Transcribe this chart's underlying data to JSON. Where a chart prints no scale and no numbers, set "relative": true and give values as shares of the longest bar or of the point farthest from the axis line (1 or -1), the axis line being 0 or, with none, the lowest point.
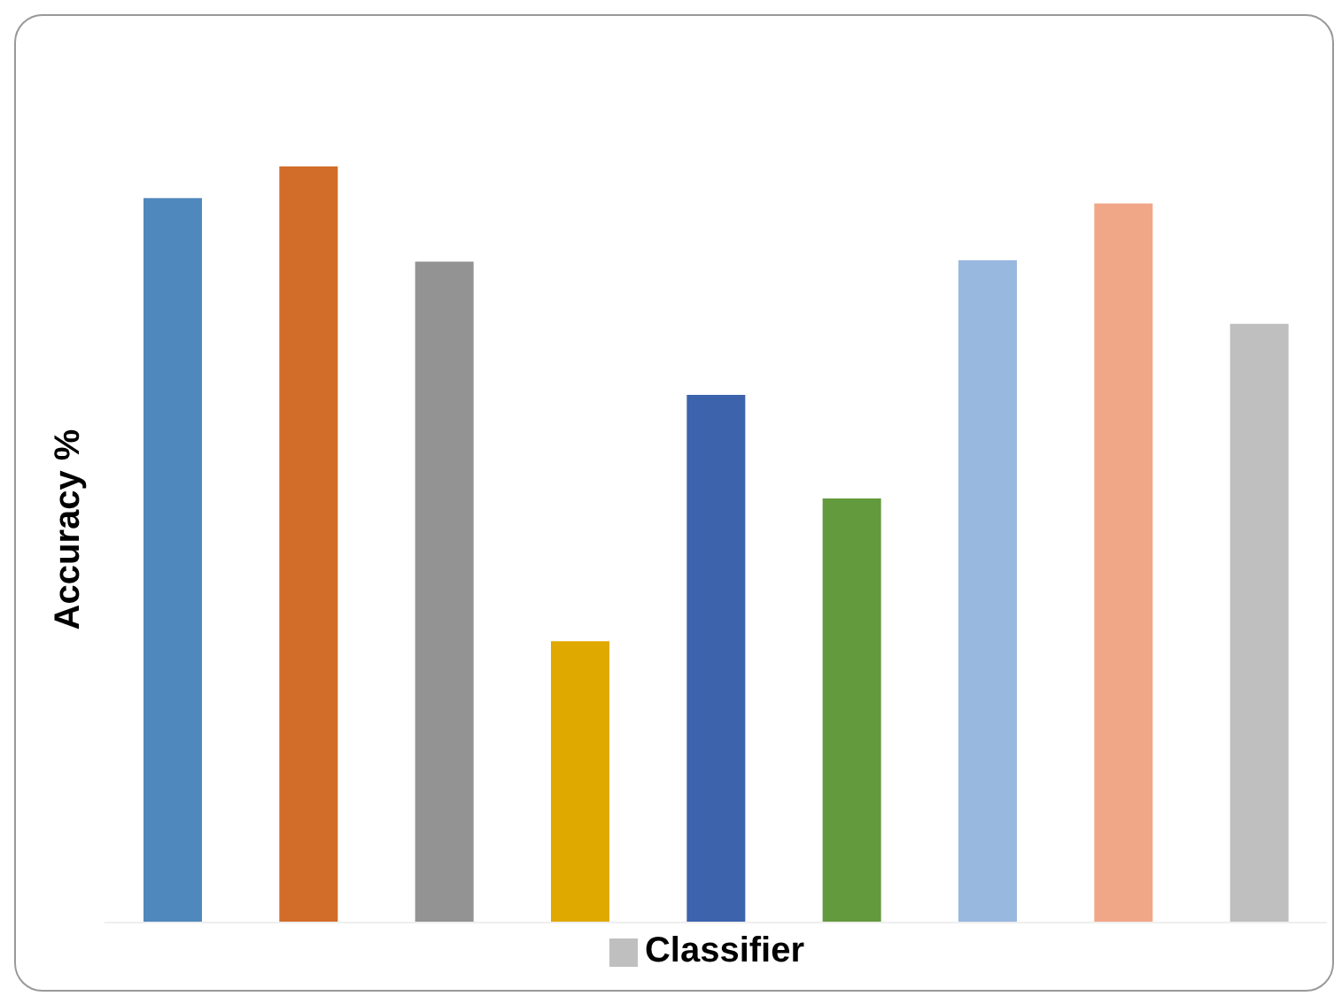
{
  "chart_data": {
    "type": "bar",
    "ylabel": "Accuracy %",
    "relative": true,
    "categories": [
      null,
      null,
      null,
      null,
      null,
      null,
      null,
      null,
      null
    ],
    "series": [
      {
        "name": "Classifier",
        "color": "#bfbfbf",
        "colors": [
          "#4f88bd",
          "#d26d29",
          "#939393",
          "#e0a900",
          "#3c63ac",
          "#639a3d",
          "#98b8df",
          "#f0a788",
          "#bfbfbf"
        ],
        "values": [
          0.958,
          1,
          0.874,
          0.372,
          0.698,
          0.561,
          0.876,
          0.951,
          0.792
        ]
      }
    ],
    "legend": "bottom"
  }
}
